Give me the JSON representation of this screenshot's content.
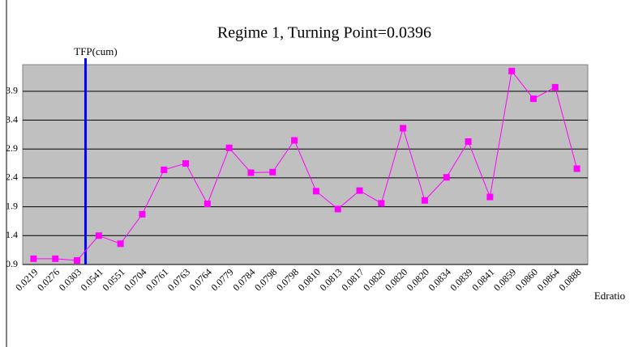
{
  "chart_data": {
    "type": "line",
    "title": "Regime 1, Turning Point=0.0396",
    "turning_point": 0.0396,
    "y_label": "TFP(cum)",
    "x_label": "Edratio",
    "categories": [
      "0.0219",
      "0.0276",
      "0.0303",
      "0.0541",
      "0.0551",
      "0.0704",
      "0.0761",
      "0.0763",
      "0.0764",
      "0.0779",
      "0.0784",
      "0.0798",
      "0.0798",
      "0.0810",
      "0.0813",
      "0.0817",
      "0.0820",
      "0.0820",
      "0.0820",
      "0.0834",
      "0.0839",
      "0.0841",
      "0.0859",
      "0.0860",
      "0.0864",
      "0.0888"
    ],
    "series": [
      {
        "name": "TFP(cum)",
        "color": "#ff00ff",
        "values": [
          1.0,
          1.0,
          0.97,
          1.4,
          1.26,
          1.77,
          2.54,
          2.65,
          1.95,
          2.92,
          2.49,
          2.5,
          3.05,
          2.17,
          1.86,
          2.18,
          1.96,
          3.26,
          2.01,
          2.41,
          3.03,
          2.07,
          4.25,
          3.77,
          3.97,
          2.56
        ]
      }
    ],
    "vline_color": "#0000ff",
    "plot_background": "#c0c0c0",
    "ylim": [
      0.9,
      4.36
    ],
    "yticks": [
      0.9,
      1.4,
      1.9,
      2.4,
      2.9,
      3.4,
      3.9
    ],
    "grid": true
  }
}
